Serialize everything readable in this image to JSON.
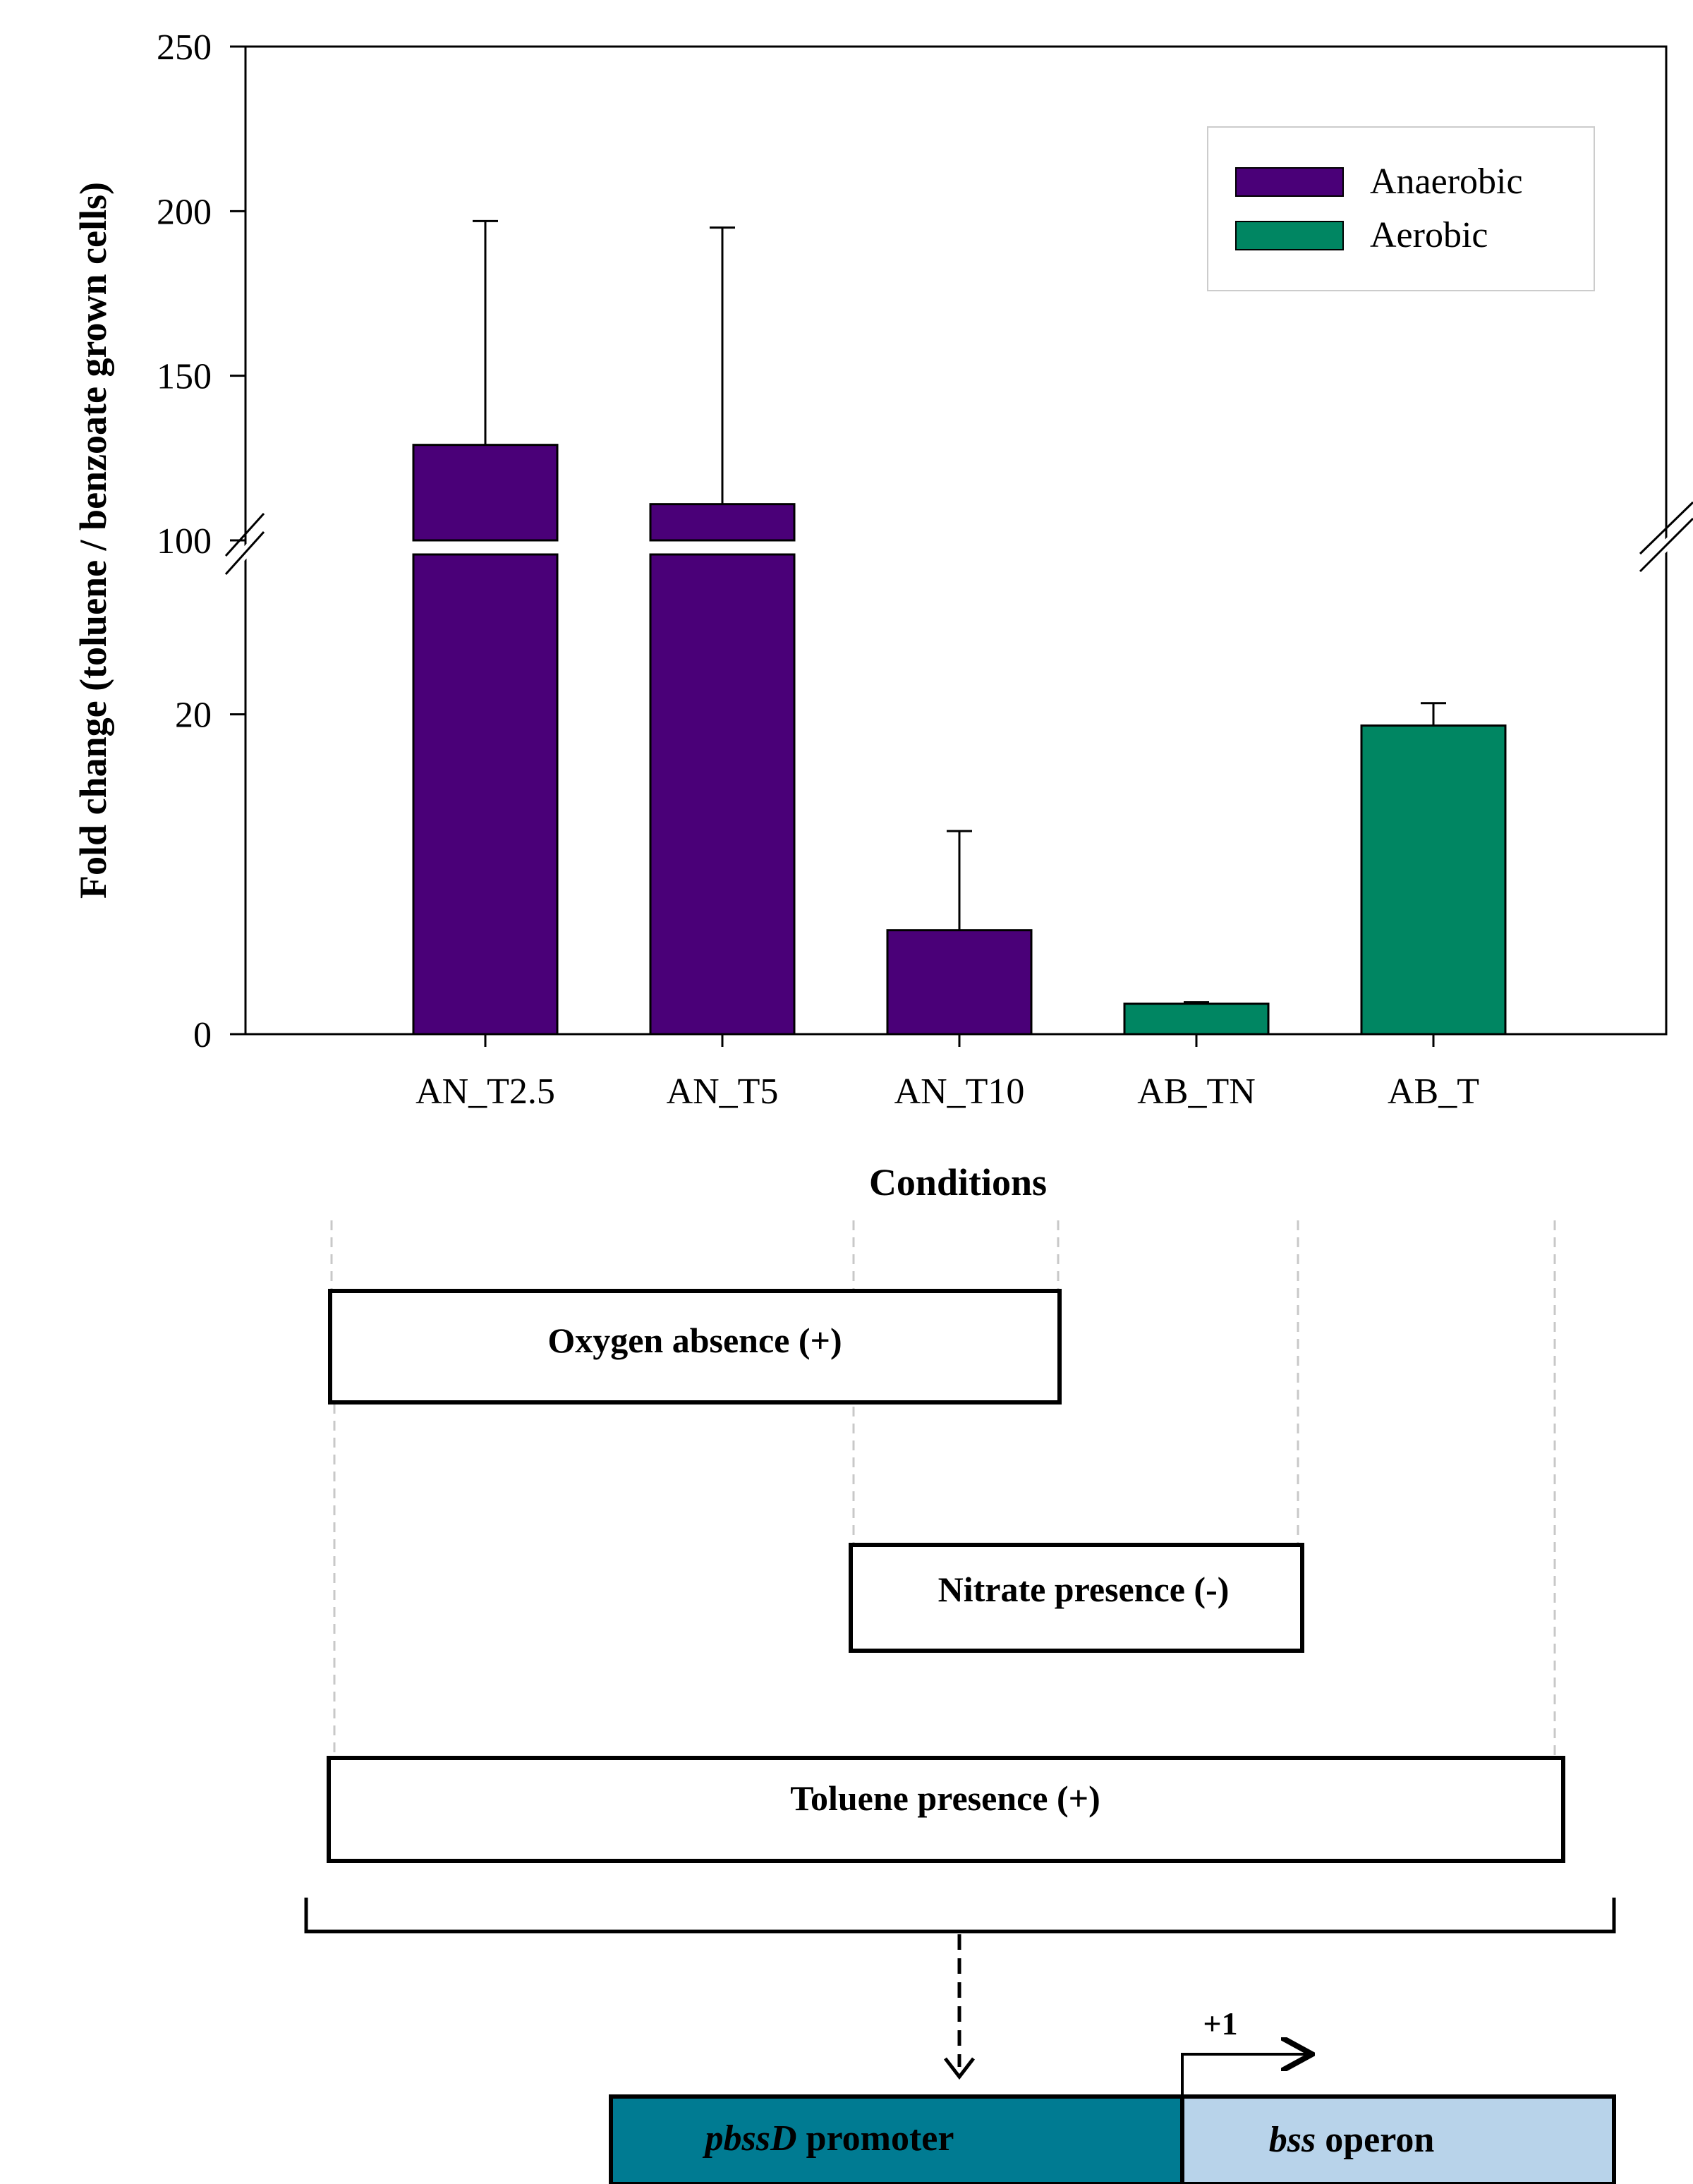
{
  "chart_data": {
    "type": "bar",
    "title": "",
    "xlabel": "Conditions",
    "ylabel": "Fold change (toluene / benzoate grown cells)",
    "axis_break": {
      "lower_range": [
        0,
        30
      ],
      "upper_range": [
        100,
        250
      ]
    },
    "yticks_lower": [
      "0",
      "20"
    ],
    "yticks_upper": [
      "100",
      "150",
      "200",
      "250"
    ],
    "categories": [
      "AN_T2.5",
      "AN_T5",
      "AN_T10",
      "AB_TN",
      "AB_T"
    ],
    "values": [
      129,
      111,
      6.5,
      1.9,
      19.3
    ],
    "error_plus": [
      68,
      84,
      6.2,
      0.1,
      1.4
    ],
    "groups": [
      "Anaerobic",
      "Anaerobic",
      "Anaerobic",
      "Aerobic",
      "Aerobic"
    ],
    "series": [
      {
        "name": "Anaerobic",
        "color": "#4a0078"
      },
      {
        "name": "Aerobic",
        "color": "#008662"
      }
    ],
    "legend_position": "top-right"
  },
  "diagram": {
    "oxygen_label": "Oxygen absence (+)",
    "nitrate_label": "Nitrate presence (-)",
    "toluene_label": "Toluene presence (+)",
    "tss_label": "+1",
    "promoter_italic": "pbssD",
    "promoter_rest": " promoter",
    "operon_italic": "bss",
    "operon_rest": " operon",
    "promoter_color": "#007b92",
    "operon_color": "#b8d3ea"
  }
}
